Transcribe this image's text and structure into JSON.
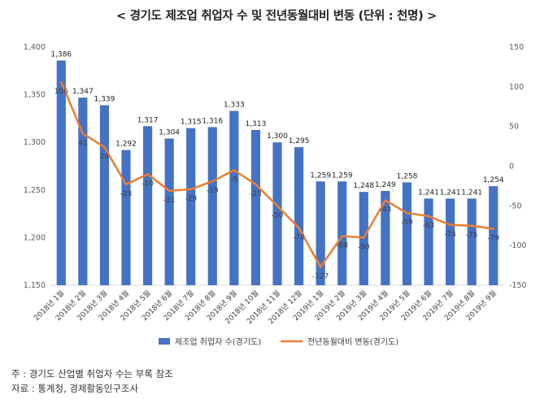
{
  "title": "< 경기도 제조업 취업자 수 및 전년동월대비 변동 (단위 : 천명) >",
  "notes": {
    "note1": "주 : 경기도 산업별 취업자 수는 부록 참조",
    "note2": "자료 : 통계청, 경제활동인구조사"
  },
  "chart_data": {
    "type": "bar",
    "categories": [
      "2018년 1월",
      "2018년 2월",
      "2018년 3월",
      "2018년 4월",
      "2018년 5월",
      "2018년 6월",
      "2018년 7월",
      "2018년 8월",
      "2018년 9월",
      "2018년 10월",
      "2018년 11월",
      "2018년 12월",
      "2019년 1월",
      "2019년 2월",
      "2019년 3월",
      "2019년 4월",
      "2019년 5월",
      "2019년 6월",
      "2019년 7월",
      "2019년 8월",
      "2019년 9월"
    ],
    "series": [
      {
        "name": "제조업 취업자 수(경기도)",
        "type": "bar",
        "axis": "left",
        "color": "#4472C4",
        "values": [
          1386,
          1347,
          1339,
          1292,
          1317,
          1304,
          1315,
          1316,
          1333,
          1313,
          1300,
          1295,
          1259,
          1259,
          1248,
          1249,
          1258,
          1241,
          1241,
          1241,
          1254
        ]
      },
      {
        "name": "전년동월대비 변동(경기도)",
        "type": "line",
        "axis": "right",
        "color": "#ED7D31",
        "values": [
          106,
          41,
          24,
          -23,
          -10,
          -31,
          -29,
          -19,
          -5,
          -23,
          -50,
          -78,
          -127,
          -88,
          -90,
          -43,
          -59,
          -63,
          -74,
          -75,
          -79
        ]
      }
    ],
    "ylim_left": [
      1150,
      1400
    ],
    "yticks_left": [
      1150,
      1200,
      1250,
      1300,
      1350,
      1400
    ],
    "ylim_right": [
      -150,
      150
    ],
    "yticks_right": [
      -150,
      -100,
      -50,
      0,
      50,
      100,
      150
    ],
    "grid": false,
    "legend": "bottom"
  }
}
